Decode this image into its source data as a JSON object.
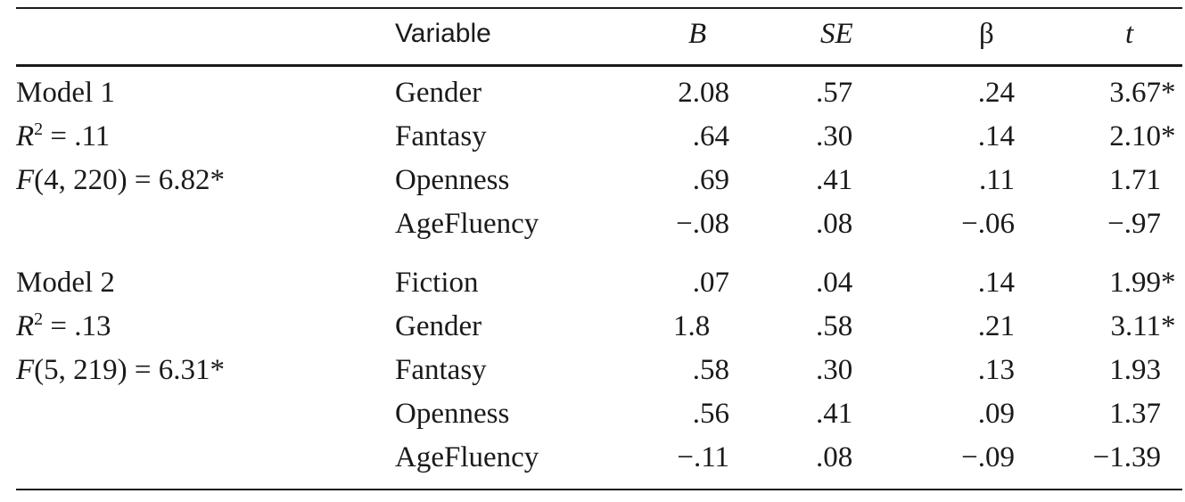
{
  "headers": {
    "variable": "Variable",
    "b": "B",
    "se": "SE",
    "beta": "β",
    "t": "t"
  },
  "models": [
    {
      "name": "Model 1",
      "r2_label": "R",
      "r2_sup": "2",
      "r2_value": " = .11",
      "f_label": "F",
      "f_value": "(4, 220) = 6.82*",
      "rows": [
        {
          "variable": "Gender",
          "b": "2.08",
          "se": ".57",
          "beta": ".24",
          "t": "3.67",
          "t_star": "*"
        },
        {
          "variable": "Fantasy",
          "b": ".64",
          "se": ".30",
          "beta": ".14",
          "t": "2.10",
          "t_star": "*"
        },
        {
          "variable": "Openness",
          "b": ".69",
          "se": ".41",
          "beta": ".11",
          "t": "1.71",
          "t_star": ""
        },
        {
          "variable": "AgeFluency",
          "b": "−.08",
          "se": ".08",
          "beta": "−.06",
          "t": "−.97",
          "t_star": ""
        }
      ]
    },
    {
      "name": "Model 2",
      "r2_label": "R",
      "r2_sup": "2",
      "r2_value": " = .13",
      "f_label": "F",
      "f_value": "(5, 219) = 6.31*",
      "rows": [
        {
          "variable": "Fiction",
          "b": ".07",
          "se": ".04",
          "beta": ".14",
          "t": "1.99",
          "t_star": "*"
        },
        {
          "variable": "Gender",
          "b": "1.8",
          "se": ".58",
          "beta": ".21",
          "t": "3.11",
          "t_star": "*"
        },
        {
          "variable": "Fantasy",
          "b": ".58",
          "se": ".30",
          "beta": ".13",
          "t": "1.93",
          "t_star": ""
        },
        {
          "variable": "Openness",
          "b": ".56",
          "se": ".41",
          "beta": ".09",
          "t": "1.37",
          "t_star": ""
        },
        {
          "variable": "AgeFluency",
          "b": "−.11",
          "se": ".08",
          "beta": "−.09",
          "t": "−1.39",
          "t_star": ""
        }
      ]
    }
  ]
}
